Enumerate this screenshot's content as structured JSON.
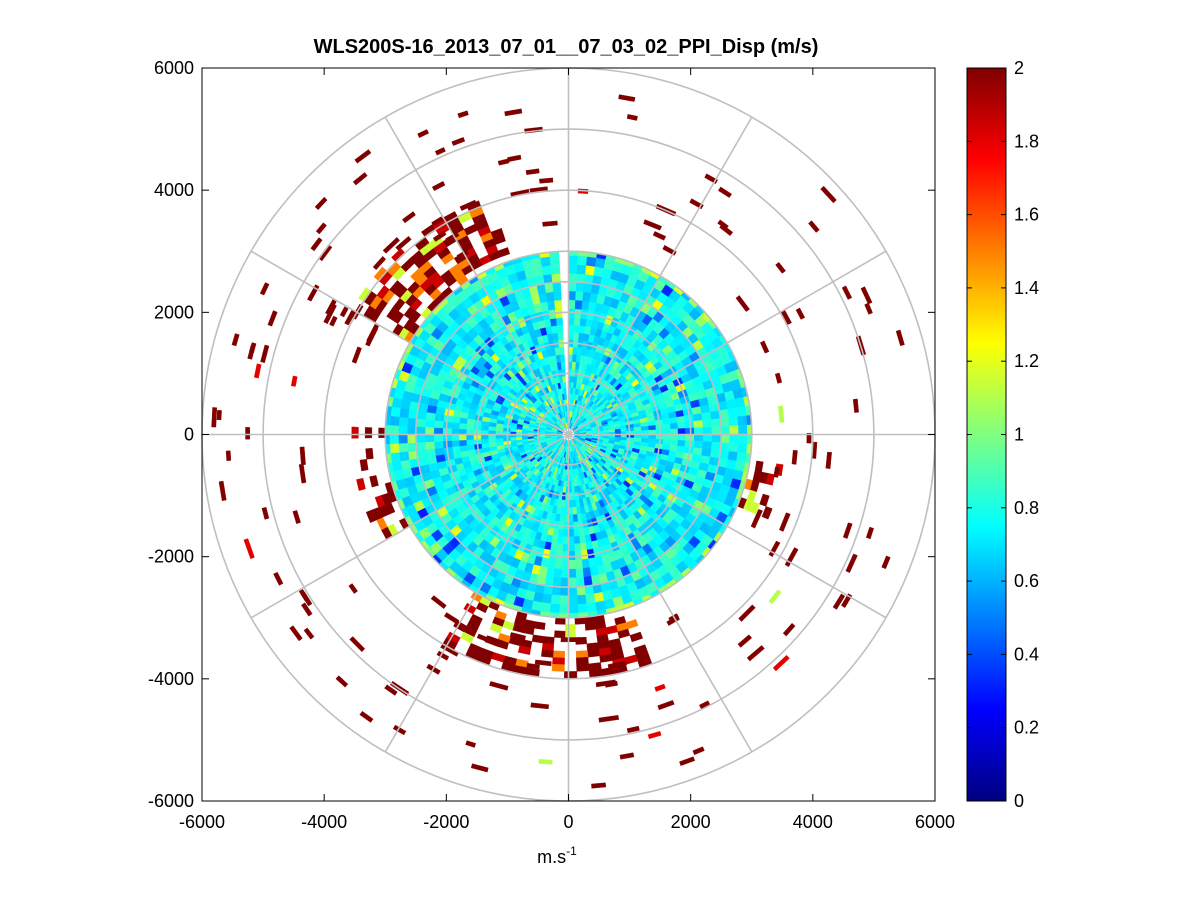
{
  "chart_data": {
    "type": "heatmap",
    "subtype": "polar-ppi",
    "title": "WLS200S-16_2013_07_01__07_03_02_PPI_Disp (m/s)",
    "xlabel": "m.s",
    "xlabel_superscript": "-1",
    "ylabel": "",
    "xlim": [
      -6000,
      6000
    ],
    "ylim": [
      -6000,
      6000
    ],
    "x_ticks": [
      "-6000",
      "-4000",
      "-2000",
      "0",
      "2000",
      "4000",
      "6000"
    ],
    "y_ticks": [
      "6000",
      "4000",
      "2000",
      "0",
      "-2000",
      "-4000",
      "-6000"
    ],
    "polar_grid_radii": [
      500,
      1000,
      1500,
      2000,
      2500,
      3000,
      4000,
      5000,
      6000
    ],
    "polar_grid_angles_deg": [
      0,
      30,
      60,
      90,
      120,
      150,
      180,
      210,
      240,
      270,
      300,
      330
    ],
    "core_radius": 3000,
    "core_gap_bearing_deg": [
      -4,
      1.5
    ],
    "outer_radius_max": 5800,
    "colormap": "jet",
    "clim": [
      0,
      2
    ],
    "colorbar_ticks": [
      "2",
      "1.8",
      "1.6",
      "1.4",
      "1.2",
      "1",
      "0.8",
      "0.6",
      "0.4",
      "0.2",
      "0"
    ],
    "colorbar_tick_values": [
      2,
      1.8,
      1.6,
      1.4,
      1.2,
      1,
      0.8,
      0.6,
      0.4,
      0.2,
      0
    ],
    "typical_core_value": 0.75,
    "saturated_value": 2.0
  }
}
